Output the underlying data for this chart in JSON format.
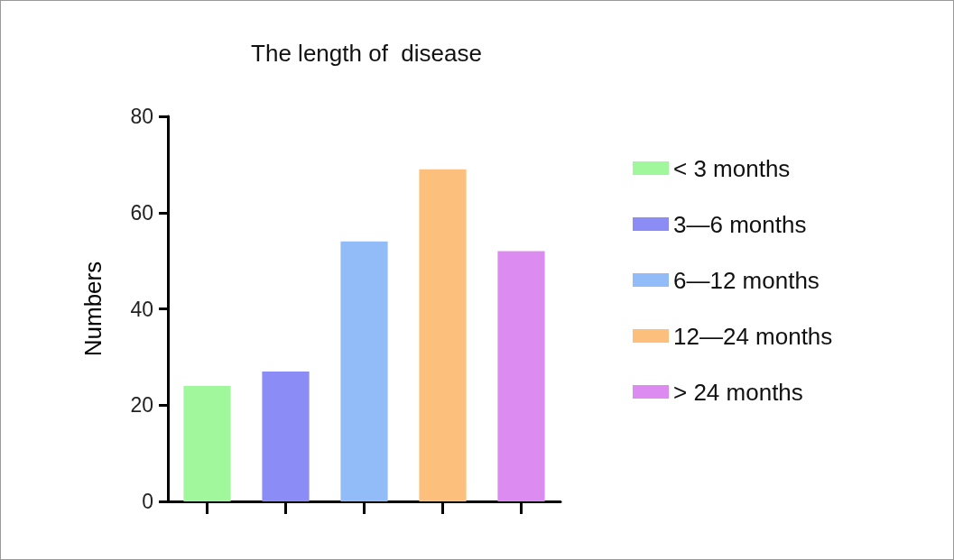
{
  "chart_data": {
    "type": "bar",
    "title": "The length of  disease",
    "ylabel": "Numbers",
    "categories": [
      null,
      null,
      null,
      null,
      null
    ],
    "series": [
      {
        "name": "< 3 months",
        "color": "#a0f79c",
        "values": [
          24,
          null,
          null,
          null,
          null
        ]
      },
      {
        "name": "3—6 months",
        "color": "#8c8cf7",
        "values": [
          null,
          27,
          null,
          null,
          null
        ]
      },
      {
        "name": "6—12 months",
        "color": "#91bcf7",
        "values": [
          null,
          null,
          54,
          null,
          null
        ]
      },
      {
        "name": "12—24 months",
        "color": "#fcc07c",
        "values": [
          null,
          null,
          null,
          69,
          null
        ]
      },
      {
        "name": "> 24 months",
        "color": "#dc8cf0",
        "values": [
          null,
          null,
          null,
          null,
          52
        ]
      }
    ],
    "ylim": [
      0,
      80
    ],
    "yticks": [
      0,
      20,
      40,
      60,
      80
    ],
    "grid": false,
    "legend": "right"
  }
}
